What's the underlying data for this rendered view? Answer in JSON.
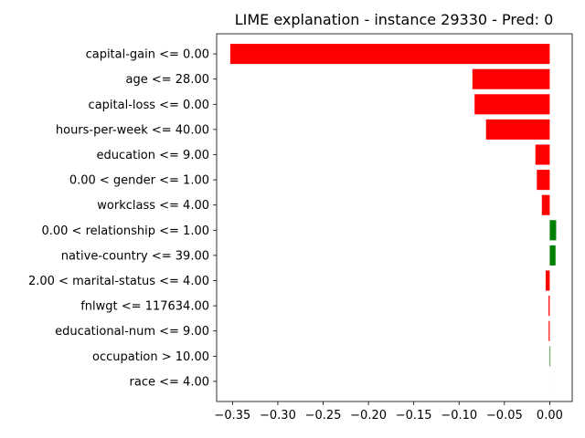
{
  "chart_data": {
    "type": "bar",
    "orientation": "horizontal",
    "title": "LIME explanation - instance 29330 - Pred: 0",
    "xlabel": "",
    "ylabel": "",
    "xlim": [
      -0.3675,
      0.0248
    ],
    "xticks": [
      -0.35,
      -0.3,
      -0.25,
      -0.2,
      -0.15,
      -0.1,
      -0.05,
      0.0
    ],
    "xtick_labels": [
      "−0.35",
      "−0.30",
      "−0.25",
      "−0.20",
      "−0.15",
      "−0.10",
      "−0.05",
      "0.00"
    ],
    "grid": false,
    "colors": {
      "negative": "#ff0000",
      "positive": "#008000"
    },
    "categories": [
      "capital-gain <= 0.00",
      "age <= 28.00",
      "capital-loss <= 0.00",
      "hours-per-week <= 40.00",
      "education <= 9.00",
      "0.00 < gender <= 1.00",
      "workclass <= 4.00",
      "0.00 < relationship <= 1.00",
      "native-country <= 39.00",
      "2.00 < marital-status <= 4.00",
      "fnlwgt <= 117634.00",
      "educational-num <= 9.00",
      "occupation > 10.00",
      "race <= 4.00"
    ],
    "values": [
      -0.3525,
      -0.0853,
      -0.0829,
      -0.0703,
      -0.0158,
      -0.0142,
      -0.0087,
      0.0071,
      0.0064,
      -0.0045,
      -0.0013,
      -0.0012,
      0.0007,
      0.0
    ]
  }
}
